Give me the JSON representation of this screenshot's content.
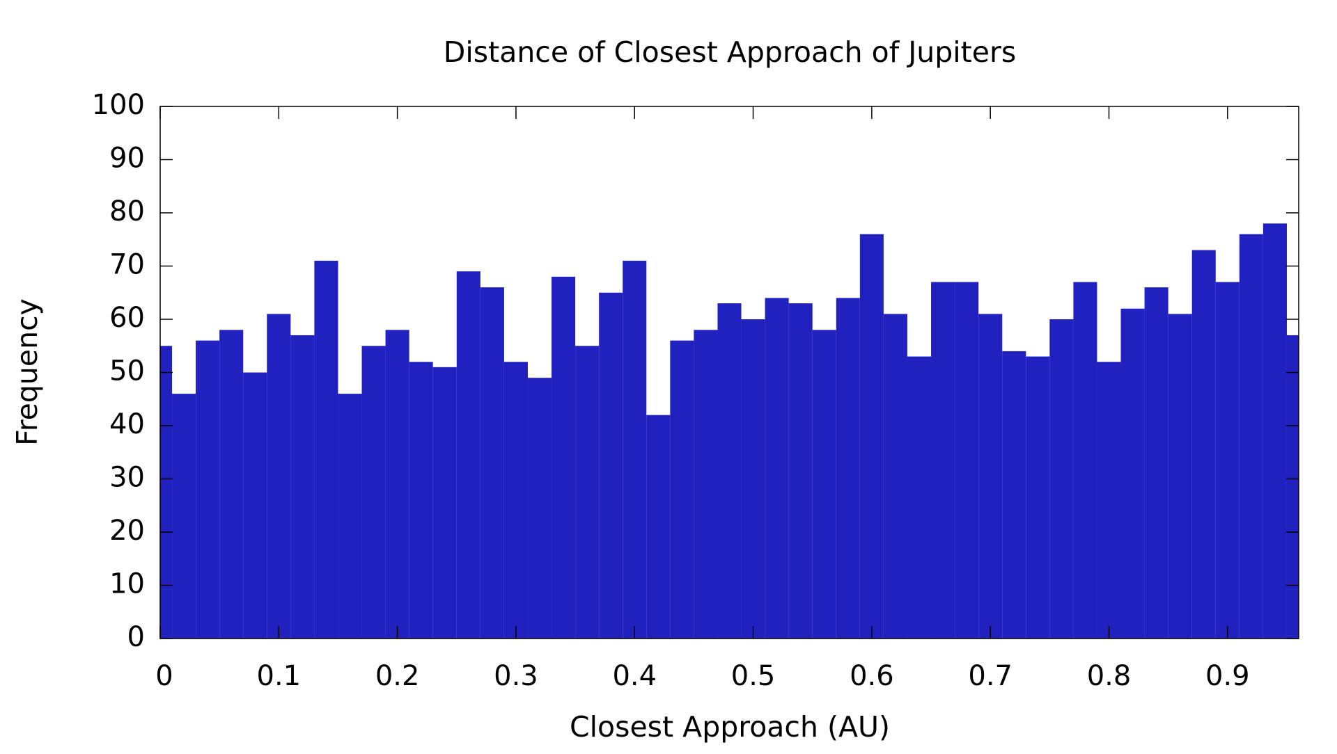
{
  "chart_data": {
    "type": "histogram",
    "title": "Distance of Closest Approach of Jupiters",
    "xlabel": "Closest Approach (AU)",
    "ylabel": "Frequency",
    "bins": [
      -0.01,
      0.01,
      0.03,
      0.05,
      0.07,
      0.09,
      0.11,
      0.13,
      0.15,
      0.17,
      0.19,
      0.21,
      0.23,
      0.25,
      0.27,
      0.29,
      0.31,
      0.33,
      0.35,
      0.37,
      0.39,
      0.41,
      0.43,
      0.45,
      0.47,
      0.49,
      0.51,
      0.53,
      0.55,
      0.57,
      0.59,
      0.61,
      0.63,
      0.65,
      0.67,
      0.69,
      0.71,
      0.73,
      0.75,
      0.77,
      0.79,
      0.81,
      0.83,
      0.85,
      0.87,
      0.89,
      0.91,
      0.93,
      0.95,
      0.97
    ],
    "values": [
      55,
      46,
      56,
      58,
      50,
      61,
      57,
      71,
      46,
      55,
      58,
      52,
      51,
      69,
      66,
      52,
      49,
      68,
      55,
      65,
      71,
      42,
      56,
      58,
      63,
      60,
      64,
      63,
      58,
      64,
      76,
      61,
      53,
      67,
      67,
      61,
      54,
      53,
      60,
      67,
      52,
      62,
      66,
      61,
      73,
      67,
      76,
      78,
      57
    ],
    "color": "#2121c0",
    "xlim": [
      0,
      0.96
    ],
    "xticks": [
      0,
      0.1,
      0.2,
      0.3,
      0.4,
      0.5,
      0.6,
      0.7,
      0.8,
      0.9
    ],
    "ylim": [
      0,
      100
    ],
    "yticks": [
      0,
      10,
      20,
      30,
      40,
      50,
      60,
      70,
      80,
      90,
      100
    ],
    "grid": false
  }
}
